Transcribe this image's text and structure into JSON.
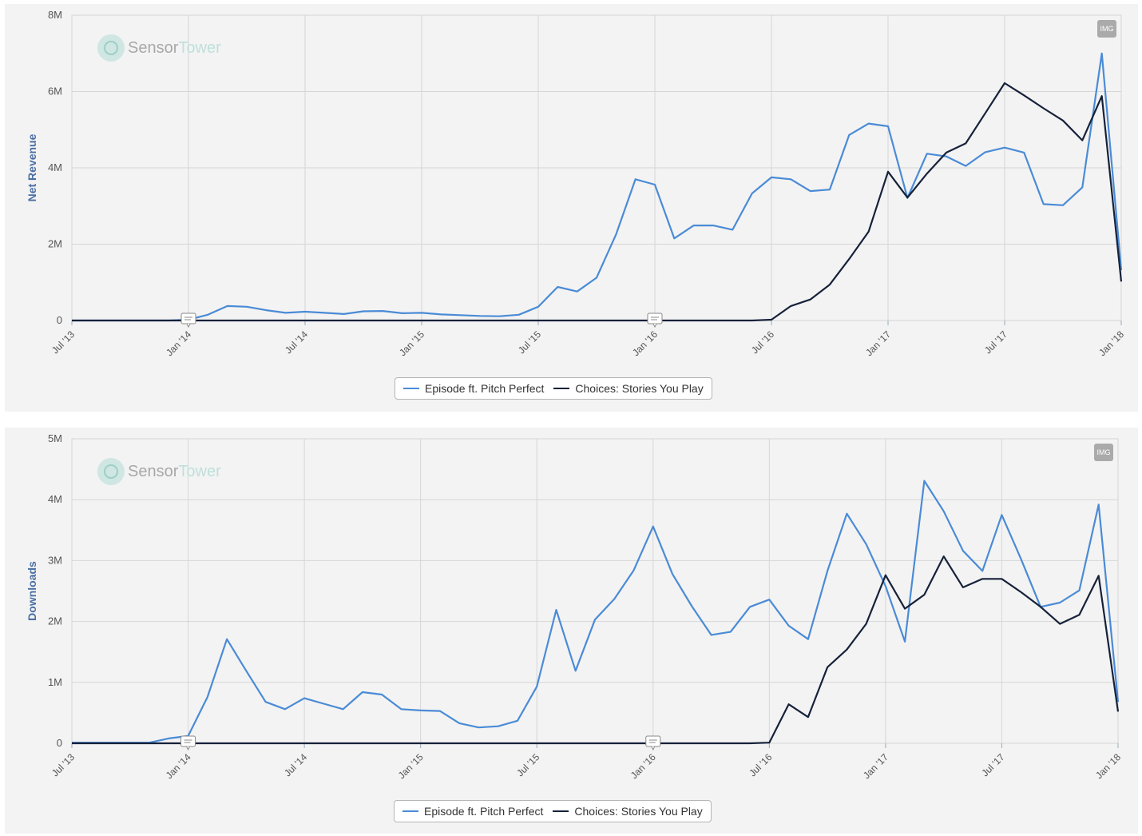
{
  "colors": {
    "series_a": "#4a8bd6",
    "series_b": "#16213a",
    "grid": "#d6d6d6",
    "axis_text": "#555555",
    "ylabel": "#4b6fa3"
  },
  "logo": {
    "part1": "Sensor",
    "part2": "Tower"
  },
  "badge_label": "IMG",
  "chart_data": [
    {
      "type": "line",
      "ylabel": "Net Revenue",
      "ylim": [
        0,
        8000000
      ],
      "yticks": [
        0,
        2000000,
        4000000,
        6000000,
        8000000
      ],
      "ytick_labels": [
        "0",
        "2M",
        "4M",
        "6M",
        "8M"
      ],
      "xlim": [
        "2013-07-01",
        "2018-01-01"
      ],
      "xtick_labels": [
        "Jul '13",
        "Jan '14",
        "Jul '14",
        "Jan '15",
        "Jul '15",
        "Jan '16",
        "Jul '16",
        "Jan '17",
        "Jul '17",
        "Jan '18"
      ],
      "grid": true,
      "legend": "bottom-center",
      "annotations": [
        "2014-01-01",
        "2016-01-01"
      ],
      "series": [
        {
          "name": "Episode ft. Pitch Perfect",
          "x": [
            "2013-07-01",
            "2013-08-01",
            "2013-09-01",
            "2013-10-01",
            "2013-11-01",
            "2013-12-01",
            "2014-01-01",
            "2014-02-01",
            "2014-03-01",
            "2014-04-01",
            "2014-05-01",
            "2014-06-01",
            "2014-07-01",
            "2014-08-01",
            "2014-09-01",
            "2014-10-01",
            "2014-11-01",
            "2014-12-01",
            "2015-01-01",
            "2015-02-01",
            "2015-03-01",
            "2015-04-01",
            "2015-05-01",
            "2015-06-01",
            "2015-07-01",
            "2015-08-01",
            "2015-09-01",
            "2015-10-01",
            "2015-11-01",
            "2015-12-01",
            "2016-01-01",
            "2016-02-01",
            "2016-03-01",
            "2016-04-01",
            "2016-05-01",
            "2016-06-01",
            "2016-07-01",
            "2016-08-01",
            "2016-09-01",
            "2016-10-01",
            "2016-11-01",
            "2016-12-01",
            "2017-01-01",
            "2017-02-01",
            "2017-03-01",
            "2017-04-01",
            "2017-05-01",
            "2017-06-01",
            "2017-07-01",
            "2017-08-01",
            "2017-09-01",
            "2017-10-01",
            "2017-11-01",
            "2017-12-01",
            "2018-01-01"
          ],
          "values": [
            0,
            0,
            0,
            0,
            0,
            0,
            20000,
            150000,
            380000,
            360000,
            270000,
            200000,
            230000,
            200000,
            170000,
            240000,
            250000,
            190000,
            200000,
            160000,
            140000,
            120000,
            110000,
            150000,
            360000,
            880000,
            760000,
            1120000,
            2250000,
            3700000,
            3560000,
            2150000,
            2490000,
            2490000,
            2380000,
            3330000,
            3750000,
            3700000,
            3390000,
            3430000,
            4860000,
            5160000,
            5090000,
            3210000,
            4370000,
            4300000,
            4050000,
            4410000,
            4530000,
            4400000,
            3050000,
            3020000,
            3490000,
            7000000,
            1320000
          ]
        },
        {
          "name": "Choices: Stories You Play",
          "x": [
            "2013-07-01",
            "2016-06-01",
            "2016-07-01",
            "2016-08-01",
            "2016-09-01",
            "2016-10-01",
            "2016-11-01",
            "2016-12-01",
            "2017-01-01",
            "2017-02-01",
            "2017-03-01",
            "2017-04-01",
            "2017-05-01",
            "2017-06-01",
            "2017-07-01",
            "2017-08-01",
            "2017-09-01",
            "2017-10-01",
            "2017-11-01",
            "2017-12-01",
            "2018-01-01"
          ],
          "values": [
            0,
            0,
            20000,
            380000,
            550000,
            940000,
            1610000,
            2330000,
            3900000,
            3220000,
            3850000,
            4400000,
            4640000,
            5430000,
            6220000,
            5900000,
            5560000,
            5240000,
            4720000,
            5880000,
            1020000
          ]
        }
      ]
    },
    {
      "type": "line",
      "ylabel": "Downloads",
      "ylim": [
        0,
        5000000
      ],
      "yticks": [
        0,
        1000000,
        2000000,
        3000000,
        4000000,
        5000000
      ],
      "ytick_labels": [
        "0",
        "1M",
        "2M",
        "3M",
        "4M",
        "5M"
      ],
      "xlim": [
        "2013-07-01",
        "2018-01-01"
      ],
      "xtick_labels": [
        "Jul '13",
        "Jan '14",
        "Jul '14",
        "Jan '15",
        "Jul '15",
        "Jan '16",
        "Jul '16",
        "Jan '17",
        "Jul '17",
        "Jan '18"
      ],
      "grid": true,
      "legend": "bottom-center",
      "annotations": [
        "2014-01-01",
        "2016-01-01"
      ],
      "series": [
        {
          "name": "Episode ft. Pitch Perfect",
          "x": [
            "2013-07-01",
            "2013-08-01",
            "2013-09-01",
            "2013-10-01",
            "2013-11-01",
            "2013-12-01",
            "2014-01-01",
            "2014-02-01",
            "2014-03-01",
            "2014-04-01",
            "2014-05-01",
            "2014-06-01",
            "2014-07-01",
            "2014-08-01",
            "2014-09-01",
            "2014-10-01",
            "2014-11-01",
            "2014-12-01",
            "2015-01-01",
            "2015-02-01",
            "2015-03-01",
            "2015-04-01",
            "2015-05-01",
            "2015-06-01",
            "2015-07-01",
            "2015-08-01",
            "2015-09-01",
            "2015-10-01",
            "2015-11-01",
            "2015-12-01",
            "2016-01-01",
            "2016-02-01",
            "2016-03-01",
            "2016-04-01",
            "2016-05-01",
            "2016-06-01",
            "2016-07-01",
            "2016-08-01",
            "2016-09-01",
            "2016-10-01",
            "2016-11-01",
            "2016-12-01",
            "2017-01-01",
            "2017-02-01",
            "2017-03-01",
            "2017-04-01",
            "2017-05-01",
            "2017-06-01",
            "2017-07-01",
            "2017-08-01",
            "2017-09-01",
            "2017-10-01",
            "2017-11-01",
            "2017-12-01",
            "2018-01-01"
          ],
          "values": [
            10000,
            10000,
            10000,
            10000,
            10000,
            80000,
            120000,
            760000,
            1710000,
            1190000,
            680000,
            560000,
            740000,
            650000,
            560000,
            840000,
            800000,
            560000,
            540000,
            530000,
            330000,
            260000,
            280000,
            370000,
            930000,
            2190000,
            1190000,
            2030000,
            2370000,
            2840000,
            3560000,
            2780000,
            2250000,
            1780000,
            1830000,
            2240000,
            2360000,
            1930000,
            1710000,
            2830000,
            3770000,
            3270000,
            2580000,
            1670000,
            4310000,
            3810000,
            3160000,
            2830000,
            3750000,
            3020000,
            2240000,
            2310000,
            2510000,
            3920000,
            680000
          ]
        },
        {
          "name": "Choices: Stories You Play",
          "x": [
            "2013-07-01",
            "2016-06-01",
            "2016-07-01",
            "2016-08-01",
            "2016-09-01",
            "2016-10-01",
            "2016-11-01",
            "2016-12-01",
            "2017-01-01",
            "2017-02-01",
            "2017-03-01",
            "2017-04-01",
            "2017-05-01",
            "2017-06-01",
            "2017-07-01",
            "2017-08-01",
            "2017-09-01",
            "2017-10-01",
            "2017-11-01",
            "2017-12-01",
            "2018-01-01"
          ],
          "values": [
            0,
            0,
            10000,
            640000,
            430000,
            1250000,
            1540000,
            1960000,
            2760000,
            2210000,
            2440000,
            3070000,
            2560000,
            2700000,
            2700000,
            2480000,
            2240000,
            1960000,
            2110000,
            2750000,
            520000
          ]
        }
      ]
    }
  ]
}
